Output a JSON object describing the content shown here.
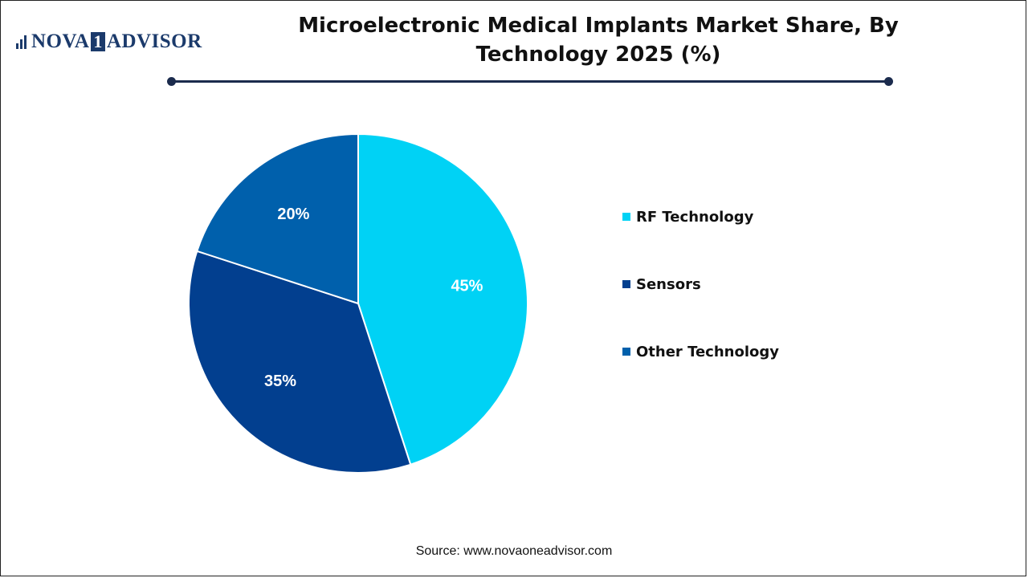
{
  "logo": {
    "part1": "NOVA",
    "part2": "1",
    "part3": "ADVISOR"
  },
  "title": "Microelectronic Medical Implants Market Share, By Technology 2025 (%)",
  "source": "Source: www.novaoneadvisor.com",
  "chart_data": {
    "type": "pie",
    "title": "Microelectronic Medical Implants Market Share, By Technology 2025 (%)",
    "categories": [
      "RF Technology",
      "Sensors",
      "Other Technology"
    ],
    "values": [
      45,
      35,
      20
    ],
    "labels": [
      "45%",
      "35%",
      "20%"
    ],
    "colors": [
      "#00d2f5",
      "#023f8f",
      "#0060ac"
    ],
    "legend": "right"
  }
}
